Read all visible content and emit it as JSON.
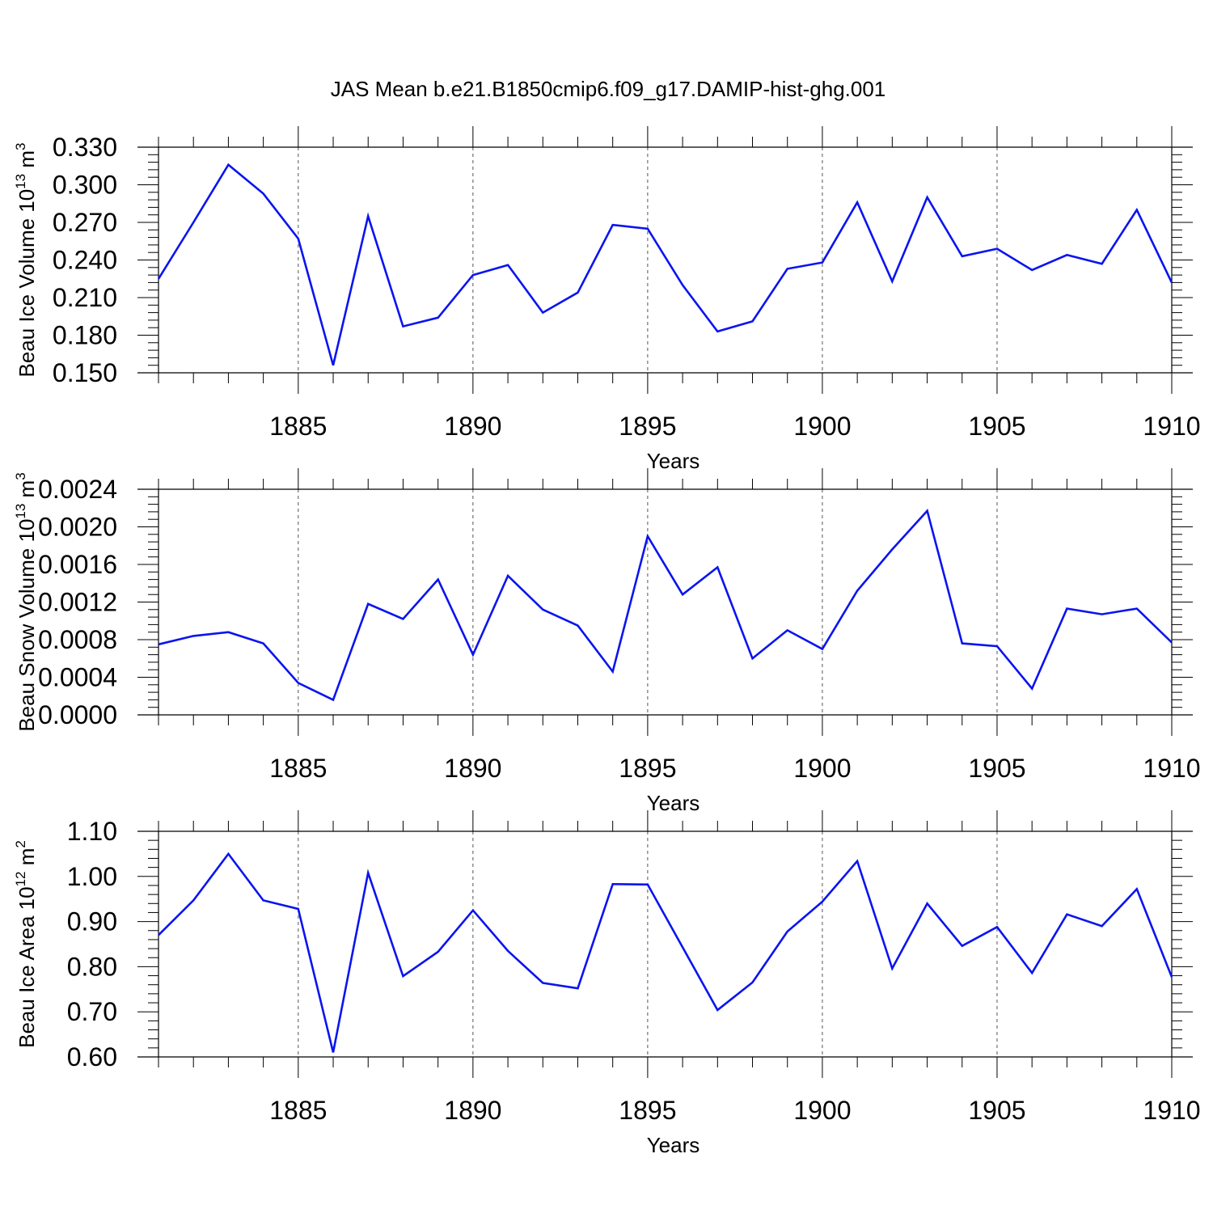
{
  "title": "JAS Mean b.e21.B1850cmip6.f09_g17.DAMIP-hist-ghg.001",
  "colors": {
    "line": "#0a14f0",
    "axis": "#000000",
    "grid": "#555555"
  },
  "chart_data": [
    {
      "type": "line",
      "title": "JAS Mean b.e21.B1850cmip6.f09_g17.DAMIP-hist-ghg.001",
      "ylabel": {
        "text": "Beau Ice Volume 10",
        "exp": "13",
        "unit": " m",
        "unit_exp": "3"
      },
      "xlabel": "Years",
      "xlim": [
        1881,
        1910
      ],
      "ylim": [
        0.15,
        0.33
      ],
      "yticks": [
        0.15,
        0.18,
        0.21,
        0.24,
        0.27,
        0.3,
        0.33
      ],
      "ytick_labels": [
        "0.150",
        "0.180",
        "0.210",
        "0.240",
        "0.270",
        "0.300",
        "0.330"
      ],
      "xticks": [
        1885,
        1890,
        1895,
        1900,
        1905,
        1910
      ],
      "xtick_labels": [
        "1885",
        "1890",
        "1895",
        "1900",
        "1905",
        "1910"
      ],
      "x": [
        1881,
        1882,
        1883,
        1884,
        1885,
        1886,
        1887,
        1888,
        1889,
        1890,
        1891,
        1892,
        1893,
        1894,
        1895,
        1896,
        1897,
        1898,
        1899,
        1900,
        1901,
        1902,
        1903,
        1904,
        1905,
        1906,
        1907,
        1908,
        1909,
        1910
      ],
      "series": [
        {
          "name": "Beau Ice Volume",
          "values": [
            0.225,
            0.27,
            0.316,
            0.293,
            0.257,
            0.156,
            0.275,
            0.187,
            0.194,
            0.228,
            0.236,
            0.198,
            0.214,
            0.268,
            0.265,
            0.22,
            0.183,
            0.191,
            0.233,
            0.238,
            0.286,
            0.223,
            0.29,
            0.243,
            0.249,
            0.232,
            0.244,
            0.237,
            0.28,
            0.222
          ]
        }
      ]
    },
    {
      "type": "line",
      "ylabel": {
        "text": "Beau Snow Volume 10",
        "exp": "13",
        "unit": " m",
        "unit_exp": "3"
      },
      "xlabel": "Years",
      "xlim": [
        1881,
        1910
      ],
      "ylim": [
        0.0,
        0.0024
      ],
      "yticks": [
        0.0,
        0.0004,
        0.0008,
        0.0012,
        0.0016,
        0.002,
        0.0024
      ],
      "ytick_labels": [
        "0.0000",
        "0.0004",
        "0.0008",
        "0.0012",
        "0.0016",
        "0.0020",
        "0.0024"
      ],
      "xticks": [
        1885,
        1890,
        1895,
        1900,
        1905,
        1910
      ],
      "xtick_labels": [
        "1885",
        "1890",
        "1895",
        "1900",
        "1905",
        "1910"
      ],
      "x": [
        1881,
        1882,
        1883,
        1884,
        1885,
        1886,
        1887,
        1888,
        1889,
        1890,
        1891,
        1892,
        1893,
        1894,
        1895,
        1896,
        1897,
        1898,
        1899,
        1900,
        1901,
        1902,
        1903,
        1904,
        1905,
        1906,
        1907,
        1908,
        1909,
        1910
      ],
      "series": [
        {
          "name": "Beau Snow Volume",
          "values": [
            0.00075,
            0.00084,
            0.00088,
            0.00076,
            0.00034,
            0.00016,
            0.00118,
            0.00102,
            0.00144,
            0.00064,
            0.00148,
            0.00112,
            0.00095,
            0.00046,
            0.0019,
            0.00128,
            0.00157,
            0.0006,
            0.0009,
            0.0007,
            0.00132,
            0.00176,
            0.00217,
            0.00076,
            0.00073,
            0.00028,
            0.00113,
            0.00107,
            0.00113,
            0.00077
          ]
        }
      ]
    },
    {
      "type": "line",
      "ylabel": {
        "text": "Beau Ice Area 10",
        "exp": "12",
        "unit": " m",
        "unit_exp": "2"
      },
      "xlabel": "Years",
      "xlim": [
        1881,
        1910
      ],
      "ylim": [
        0.6,
        1.1
      ],
      "yticks": [
        0.6,
        0.7,
        0.8,
        0.9,
        1.0,
        1.1
      ],
      "ytick_labels": [
        "0.60",
        "0.70",
        "0.80",
        "0.90",
        "1.00",
        "1.10"
      ],
      "xticks": [
        1885,
        1890,
        1895,
        1900,
        1905,
        1910
      ],
      "xtick_labels": [
        "1885",
        "1890",
        "1895",
        "1900",
        "1905",
        "1910"
      ],
      "x": [
        1881,
        1882,
        1883,
        1884,
        1885,
        1886,
        1887,
        1888,
        1889,
        1890,
        1891,
        1892,
        1893,
        1894,
        1895,
        1896,
        1897,
        1898,
        1899,
        1900,
        1901,
        1902,
        1903,
        1904,
        1905,
        1906,
        1907,
        1908,
        1909,
        1910
      ],
      "series": [
        {
          "name": "Beau Ice Area",
          "values": [
            0.87,
            0.947,
            1.05,
            0.947,
            0.928,
            0.61,
            1.008,
            0.779,
            0.833,
            0.925,
            0.835,
            0.764,
            0.752,
            0.983,
            0.982,
            0.843,
            0.704,
            0.765,
            0.878,
            0.944,
            1.034,
            0.796,
            0.94,
            0.846,
            0.888,
            0.786,
            0.916,
            0.89,
            0.972,
            0.777
          ]
        }
      ]
    }
  ]
}
